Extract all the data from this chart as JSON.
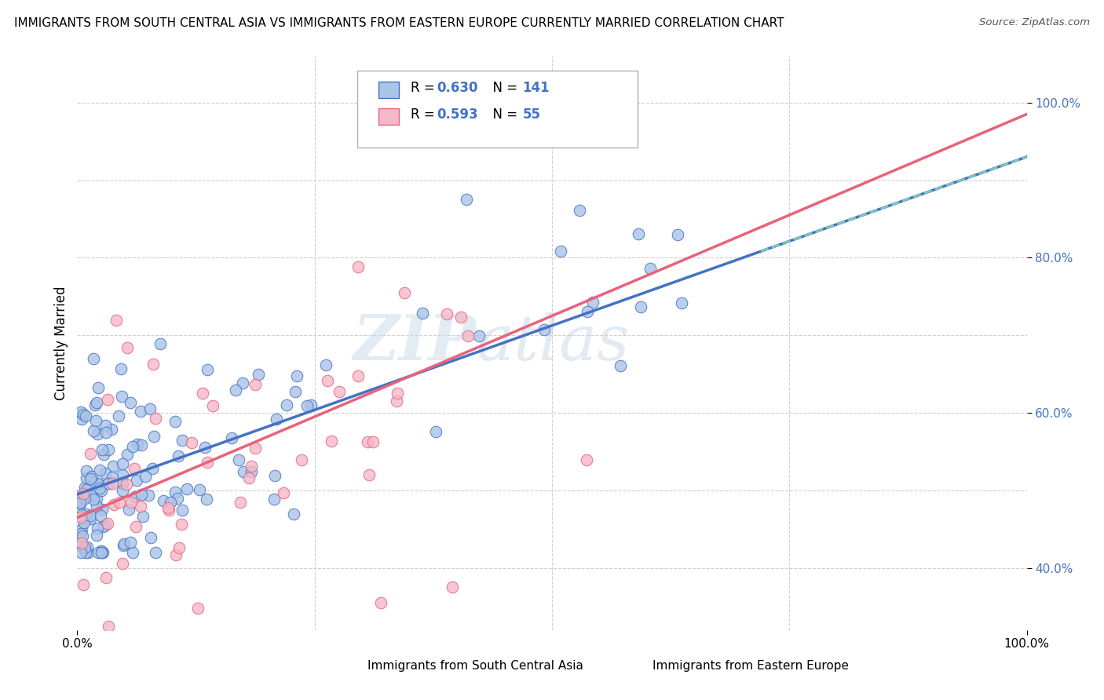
{
  "title": "IMMIGRANTS FROM SOUTH CENTRAL ASIA VS IMMIGRANTS FROM EASTERN EUROPE CURRENTLY MARRIED CORRELATION CHART",
  "source": "Source: ZipAtlas.com",
  "ylabel": "Currently Married",
  "legend_label1": "Immigrants from South Central Asia",
  "legend_label2": "Immigrants from Eastern Europe",
  "R1": 0.63,
  "N1": 141,
  "R2": 0.593,
  "N2": 55,
  "color1": "#aac4e8",
  "color2": "#f4b8c8",
  "line_color1": "#4472c4",
  "line_color2": "#e8637a",
  "dash_color": "#7fc9b8",
  "watermark_zip": "ZIP",
  "watermark_atlas": "atlas",
  "background_color": "#ffffff",
  "grid_color": "#d0d0d0",
  "xlim": [
    0.0,
    1.0
  ],
  "ylim": [
    0.32,
    1.06
  ],
  "line1_intercept": 0.495,
  "line1_slope": 0.435,
  "line2_intercept": 0.465,
  "line2_slope": 0.52,
  "y_ticks": [
    0.4,
    0.6,
    0.8,
    1.0
  ],
  "y_tick_labels": [
    "40.0%",
    "60.0%",
    "80.0%",
    "100.0%"
  ],
  "x_ticks": [
    0.0,
    1.0
  ],
  "x_tick_labels": [
    "0.0%",
    "100.0%"
  ]
}
